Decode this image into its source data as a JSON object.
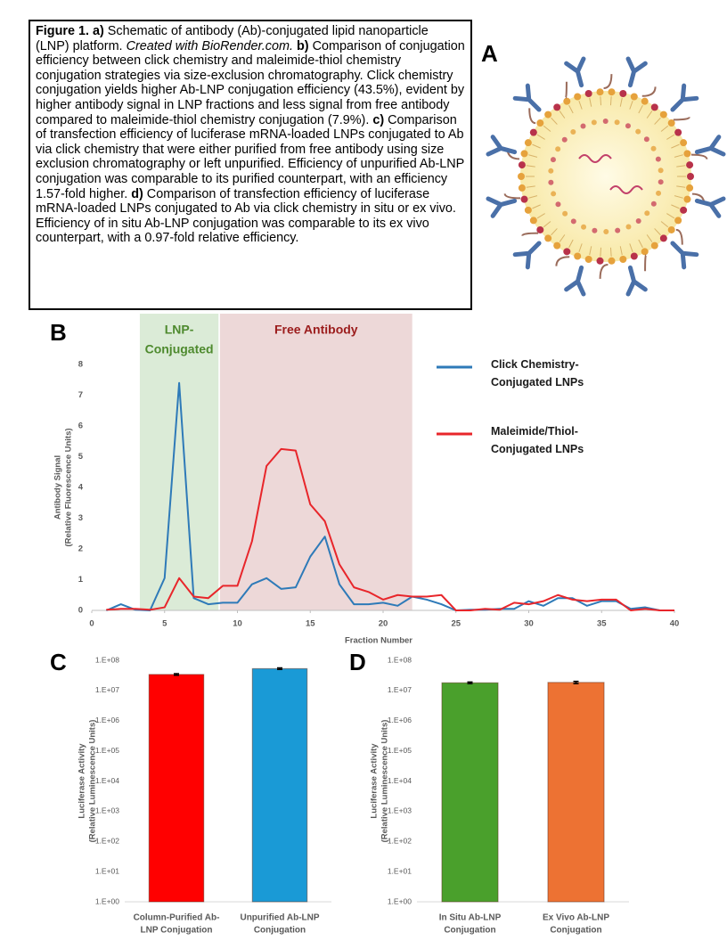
{
  "caption": {
    "segments": [
      {
        "text": "Figure 1. a)",
        "style": "bold"
      },
      {
        "text": " Schematic of antibody (Ab)-conjugated lipid nanoparticle (LNP) platform. ",
        "style": "normal"
      },
      {
        "text": "Created with BioRender.com.",
        "style": "italic"
      },
      {
        "text": " b)",
        "style": "bold"
      },
      {
        "text": " Comparison of conjugation efficiency between click chemistry and maleimide-thiol chemistry conjugation strategies via size-exclusion chromatography. Click chemistry conjugation yields higher Ab-LNP conjugation efficiency (43.5%), evident by higher antibody signal in LNP fractions and less signal from free antibody compared to maleimide-thiol chemistry conjugation (7.9%). ",
        "style": "normal"
      },
      {
        "text": "c)",
        "style": "bold"
      },
      {
        "text": " Comparison of transfection efficiency of luciferase mRNA-loaded LNPs conjugated to Ab via click chemistry that were either purified from free antibody using size exclusion chromatography or left unpurified. Efficiency of unpurified Ab-LNP conjugation was comparable to its purified counterpart, with an efficiency 1.57-fold higher. ",
        "style": "normal"
      },
      {
        "text": "d)",
        "style": "bold"
      },
      {
        "text": " Comparison of transfection efficiency of luciferase mRNA-loaded LNPs conjugated to Ab via click chemistry in situ or ex vivo. Efficiency of in situ Ab-LNP conjugation was comparable to its ex vivo counterpart, with a 0.97-fold relative efficiency.",
        "style": "normal"
      }
    ]
  },
  "schematic": {
    "panel_label": "A"
  },
  "chart_data": [
    {
      "type": "line",
      "panel_label": "B",
      "xlabel": "Fraction Number",
      "ylabel": [
        "Antibody  Signal",
        "(Relative Fluorescence Units)"
      ],
      "xlim": [
        0,
        40
      ],
      "xticks": [
        0,
        5,
        10,
        15,
        20,
        25,
        30,
        35,
        40
      ],
      "ylim": [
        0,
        8
      ],
      "yticks": [
        0,
        1,
        2,
        3,
        4,
        5,
        6,
        7,
        8
      ],
      "regions": [
        {
          "label": [
            "LNP-",
            "Conjugated"
          ],
          "xlim": [
            3.3,
            8.7
          ],
          "color": "#d5e8d0",
          "label_color": "#4e8a2e"
        },
        {
          "label": [
            "Free Antibody"
          ],
          "xlim": [
            8.8,
            22
          ],
          "color": "#ead1d1",
          "label_color": "#9b1c1c"
        }
      ],
      "x": [
        1,
        2,
        3,
        4,
        5,
        6,
        7,
        8,
        9,
        10,
        11,
        12,
        13,
        14,
        15,
        16,
        17,
        18,
        19,
        20,
        21,
        22,
        23,
        24,
        25,
        26,
        27,
        28,
        29,
        30,
        31,
        32,
        33,
        34,
        35,
        36,
        37,
        38,
        39,
        40
      ],
      "series": [
        {
          "name": "Click Chemistry-Conjugated LNPs",
          "color": "#2e7ab8",
          "values": [
            0,
            0.2,
            0.02,
            0,
            1.05,
            7.4,
            0.4,
            0.2,
            0.25,
            0.25,
            0.85,
            1.05,
            0.7,
            0.75,
            1.75,
            2.4,
            0.85,
            0.2,
            0.2,
            0.25,
            0.15,
            0.45,
            0.35,
            0.2,
            0,
            0.02,
            0.02,
            0.05,
            0.05,
            0.3,
            0.15,
            0.4,
            0.4,
            0.15,
            0.3,
            0.3,
            0.05,
            0.1,
            0,
            0
          ]
        },
        {
          "name": "Maleimide/Thiol-Conjugated LNPs",
          "color": "#e8262b",
          "values": [
            0.02,
            0.05,
            0.05,
            0.02,
            0.1,
            1.05,
            0.45,
            0.4,
            0.8,
            0.8,
            2.25,
            4.7,
            5.25,
            5.2,
            3.45,
            2.9,
            1.5,
            0.75,
            0.6,
            0.35,
            0.5,
            0.45,
            0.45,
            0.5,
            0,
            0,
            0.05,
            0.02,
            0.25,
            0.2,
            0.3,
            0.5,
            0.35,
            0.3,
            0.35,
            0.35,
            0,
            0.05,
            0,
            0
          ]
        }
      ]
    },
    {
      "type": "bar",
      "panel_label": "C",
      "log_scale": true,
      "ylabel": [
        "Luciferase Activity",
        "(Relative Luminescence Units)"
      ],
      "ylim": [
        1,
        100000000
      ],
      "yticks": [
        {
          "value": 1,
          "label": "1.E+00"
        },
        {
          "value": 10,
          "label": "1.E+01"
        },
        {
          "value": 100,
          "label": "1.E+02"
        },
        {
          "value": 1000,
          "label": "1.E+03"
        },
        {
          "value": 10000,
          "label": "1.E+04"
        },
        {
          "value": 100000,
          "label": "1.E+05"
        },
        {
          "value": 1000000,
          "label": "1.E+06"
        },
        {
          "value": 10000000,
          "label": "1.E+07"
        },
        {
          "value": 100000000,
          "label": "1.E+08"
        }
      ],
      "categories": [
        [
          "Column-Purified Ab-",
          "LNP Conjugation"
        ],
        [
          "Unpurified Ab-LNP",
          "Conjugation"
        ]
      ],
      "values": [
        34000000,
        53000000
      ],
      "errors": [
        2000000,
        3000000
      ],
      "colors": [
        "#ff0000",
        "#1a9ad6"
      ]
    },
    {
      "type": "bar",
      "panel_label": "D",
      "log_scale": true,
      "ylabel": [
        "Luciferase Activity",
        "(Relative Luminescence Units)"
      ],
      "ylim": [
        1,
        100000000
      ],
      "yticks": [
        {
          "value": 1,
          "label": "1.E+00"
        },
        {
          "value": 10,
          "label": "1.E+01"
        },
        {
          "value": 100,
          "label": "1.E+02"
        },
        {
          "value": 1000,
          "label": "1.E+03"
        },
        {
          "value": 10000,
          "label": "1.E+04"
        },
        {
          "value": 100000,
          "label": "1.E+05"
        },
        {
          "value": 1000000,
          "label": "1.E+06"
        },
        {
          "value": 10000000,
          "label": "1.E+07"
        },
        {
          "value": 100000000,
          "label": "1.E+08"
        }
      ],
      "categories": [
        [
          "In Situ Ab-LNP",
          "Conjugation"
        ],
        [
          "Ex Vivo Ab-LNP",
          "Conjugation"
        ]
      ],
      "values": [
        18000000,
        18500000
      ],
      "errors": [
        1000000,
        1500000
      ],
      "colors": [
        "#4aa02c",
        "#ed7233"
      ]
    }
  ]
}
